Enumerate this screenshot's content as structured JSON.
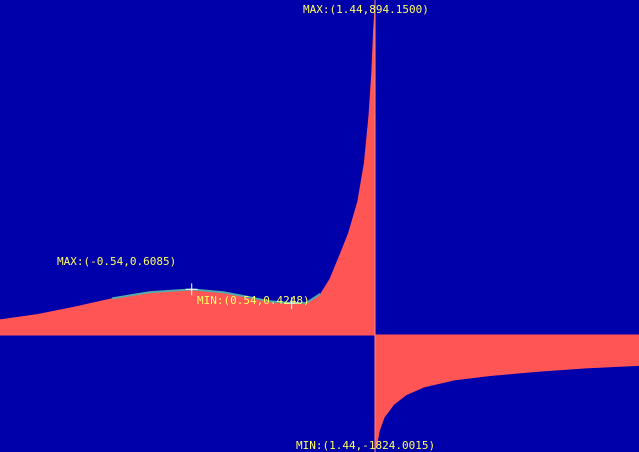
{
  "chart_data": {
    "type": "area",
    "title": "",
    "xlabel": "",
    "ylabel": "",
    "grid": false,
    "colors": {
      "background": "#0000aa",
      "fill": "#ff5555",
      "curve": "#55aaaa",
      "marker": "#ffffff",
      "label": "#ffff66"
    },
    "asymptote_x": 1.44,
    "series": [
      {
        "points_left": [
          [
            -2.6,
            0.21
          ],
          [
            -2.2,
            0.28
          ],
          [
            -1.8,
            0.38
          ],
          [
            -1.4,
            0.49
          ],
          [
            -1.0,
            0.57
          ],
          [
            -0.54,
            0.6085
          ],
          [
            -0.2,
            0.57
          ],
          [
            0.1,
            0.5
          ],
          [
            0.3,
            0.45
          ],
          [
            0.54,
            0.4248
          ],
          [
            0.7,
            0.43
          ],
          [
            0.85,
            0.55
          ],
          [
            0.95,
            0.75
          ],
          [
            1.05,
            1.1
          ],
          [
            1.15,
            2.0
          ],
          [
            1.25,
            4.5
          ],
          [
            1.32,
            12
          ],
          [
            1.37,
            40
          ],
          [
            1.4,
            120
          ],
          [
            1.42,
            350
          ],
          [
            1.44,
            894.15
          ]
        ],
        "points_right": [
          [
            1.44,
            -1824.0015
          ],
          [
            1.46,
            -900
          ],
          [
            1.48,
            -330
          ],
          [
            1.52,
            -120
          ],
          [
            1.6,
            -45
          ],
          [
            1.7,
            -22
          ],
          [
            1.85,
            -12
          ],
          [
            2.1,
            -7
          ],
          [
            2.4,
            -5
          ],
          [
            2.8,
            -3.6
          ],
          [
            3.2,
            -2.8
          ],
          [
            3.64,
            -2.3
          ]
        ]
      }
    ],
    "annotations": [
      {
        "id": "top-max",
        "text": "MAX:(1.44,894.1500)",
        "x": 1.44,
        "y": 894.15
      },
      {
        "id": "local-max",
        "text": "MAX:(-0.54,0.6085)",
        "x": -0.54,
        "y": 0.6085
      },
      {
        "id": "local-min",
        "text": "MIN:(0.54,0.4248)",
        "x": 0.54,
        "y": 0.4248
      },
      {
        "id": "bottom-min",
        "text": "MIN:(1.44,-1824.0015)",
        "x": 1.44,
        "y": -1824.0015
      }
    ]
  }
}
